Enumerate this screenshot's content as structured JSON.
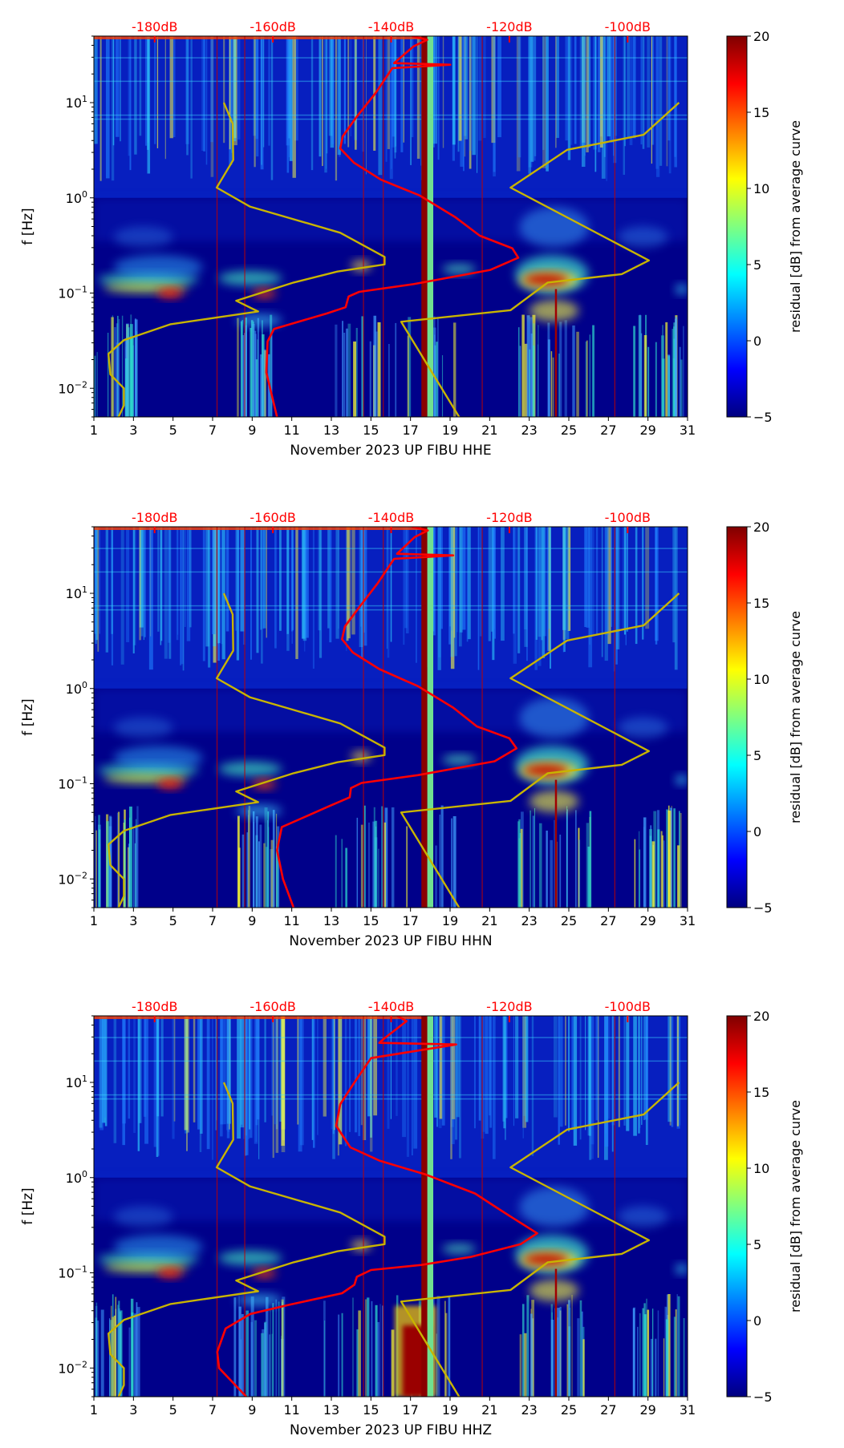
{
  "colors": {
    "psd_curve": "#ff0000",
    "noise_model": "#c8b400",
    "db_labels": "#ff0000"
  },
  "chart_data": [
    {
      "type": "heatmap",
      "xlabel": "November 2023 UP FIBU  HHE",
      "ylabel": "f [Hz]",
      "x_ticks": [
        "1",
        "3",
        "5",
        "7",
        "9",
        "11",
        "13",
        "15",
        "17",
        "19",
        "21",
        "23",
        "25",
        "27",
        "29",
        "31"
      ],
      "xlim": [
        1,
        31
      ],
      "ylim": [
        0.005,
        50
      ],
      "yscale": "log",
      "y_ticks": [
        {
          "base": "10",
          "exp": "1",
          "value": 10
        },
        {
          "base": "10",
          "exp": "0",
          "value": 1
        },
        {
          "base": "10",
          "exp": "−1",
          "value": 0.1
        },
        {
          "base": "10",
          "exp": "−2",
          "value": 0.01
        }
      ],
      "top_axis_ticks": [
        {
          "label": "-180dB",
          "db": -180
        },
        {
          "label": "-160dB",
          "db": -160
        },
        {
          "label": "-140dB",
          "db": -140
        },
        {
          "label": "-120dB",
          "db": -120
        },
        {
          "label": "-100dB",
          "db": -100
        }
      ],
      "colorbar": {
        "label": "residual [dB] from average curve",
        "ticks": [
          "20",
          "15",
          "10",
          "5",
          "0",
          "−5"
        ],
        "range": [
          -5,
          20
        ],
        "colormap": "jet"
      },
      "series": [
        {
          "name": "average PSD",
          "color": "#ff0000",
          "points_db_hz": [
            [
              -159.3,
              0.005
            ],
            [
              -161.1,
              0.0146
            ],
            [
              -160.9,
              0.031
            ],
            [
              -159.8,
              0.042
            ],
            [
              -150.9,
              0.061
            ],
            [
              -147.7,
              0.071
            ],
            [
              -147.2,
              0.092
            ],
            [
              -145.4,
              0.103
            ],
            [
              -136.2,
              0.124
            ],
            [
              -123.2,
              0.175
            ],
            [
              -118.5,
              0.235
            ],
            [
              -119.5,
              0.295
            ],
            [
              -125.0,
              0.4
            ],
            [
              -129.2,
              0.63
            ],
            [
              -135.2,
              1.06
            ],
            [
              -141.7,
              1.55
            ],
            [
              -146.3,
              2.34
            ],
            [
              -148.6,
              3.3
            ],
            [
              -148.2,
              4.4
            ],
            [
              -145.9,
              7
            ],
            [
              -142.6,
              12.7
            ],
            [
              -139.8,
              23
            ],
            [
              -130.0,
              25
            ],
            [
              -139.5,
              26
            ],
            [
              -136.2,
              39
            ],
            [
              -133.9,
              45.7
            ],
            [
              -136.5,
              50
            ]
          ]
        },
        {
          "name": "low noise model",
          "color": "#c8b400",
          "points_db_hz": [
            [
              -168.3,
              10
            ],
            [
              -166.8,
              6
            ],
            [
              -166.7,
              2.5
            ],
            [
              -169.5,
              1.28
            ],
            [
              -163.9,
              0.81
            ],
            [
              -148.6,
              0.43
            ],
            [
              -141.1,
              0.24
            ],
            [
              -141.1,
              0.2
            ],
            [
              -149.1,
              0.168
            ],
            [
              -156.5,
              0.129
            ],
            [
              -166.2,
              0.083
            ],
            [
              -162.5,
              0.064
            ],
            [
              -177.3,
              0.047
            ],
            [
              -185.2,
              0.032
            ],
            [
              -187.8,
              0.023
            ],
            [
              -187.5,
              0.014
            ],
            [
              -185.2,
              0.01
            ],
            [
              -185.2,
              0.0066
            ],
            [
              -186.1,
              0.005
            ]
          ]
        },
        {
          "name": "high noise model",
          "color": "#c8b400",
          "points_db_hz": [
            [
              -91.3,
              10
            ],
            [
              -97.3,
              4.6
            ],
            [
              -110.2,
              3.2
            ],
            [
              -119.8,
              1.28
            ],
            [
              -96.4,
              0.22
            ],
            [
              -101.0,
              0.158
            ],
            [
              -113.5,
              0.129
            ],
            [
              -119.8,
              0.066
            ],
            [
              -138.3,
              0.05
            ],
            [
              -128.5,
              0.005
            ]
          ]
        }
      ]
    },
    {
      "type": "heatmap",
      "xlabel": "November 2023 UP FIBU  HHN",
      "ylabel": "f [Hz]",
      "x_ticks": [
        "1",
        "3",
        "5",
        "7",
        "9",
        "11",
        "13",
        "15",
        "17",
        "19",
        "21",
        "23",
        "25",
        "27",
        "29",
        "31"
      ],
      "xlim": [
        1,
        31
      ],
      "ylim": [
        0.005,
        50
      ],
      "yscale": "log",
      "y_ticks": [
        {
          "base": "10",
          "exp": "1",
          "value": 10
        },
        {
          "base": "10",
          "exp": "0",
          "value": 1
        },
        {
          "base": "10",
          "exp": "−1",
          "value": 0.1
        },
        {
          "base": "10",
          "exp": "−2",
          "value": 0.01
        }
      ],
      "top_axis_ticks": [
        {
          "label": "-180dB",
          "db": -180
        },
        {
          "label": "-160dB",
          "db": -160
        },
        {
          "label": "-140dB",
          "db": -140
        },
        {
          "label": "-120dB",
          "db": -120
        },
        {
          "label": "-100dB",
          "db": -100
        }
      ],
      "colorbar": {
        "label": "residual [dB] from average curve",
        "ticks": [
          "20",
          "15",
          "10",
          "5",
          "0",
          "−5"
        ],
        "range": [
          -5,
          20
        ],
        "colormap": "jet"
      },
      "series": [
        {
          "name": "average PSD",
          "color": "#ff0000",
          "points_db_hz": [
            [
              -156.5,
              0.005
            ],
            [
              -158.3,
              0.01
            ],
            [
              -159.3,
              0.02
            ],
            [
              -158.5,
              0.035
            ],
            [
              -150.5,
              0.058
            ],
            [
              -147.0,
              0.072
            ],
            [
              -146.8,
              0.09
            ],
            [
              -145.0,
              0.102
            ],
            [
              -135.5,
              0.123
            ],
            [
              -122.5,
              0.172
            ],
            [
              -118.8,
              0.235
            ],
            [
              -120.0,
              0.3
            ],
            [
              -125.5,
              0.4
            ],
            [
              -129.5,
              0.63
            ],
            [
              -135.5,
              1.06
            ],
            [
              -142.0,
              1.6
            ],
            [
              -146.5,
              2.4
            ],
            [
              -148.3,
              3.3
            ],
            [
              -147.8,
              4.5
            ],
            [
              -145.5,
              7
            ],
            [
              -142.3,
              12.7
            ],
            [
              -139.5,
              23
            ],
            [
              -129.5,
              25
            ],
            [
              -139.0,
              26
            ],
            [
              -136.0,
              39
            ],
            [
              -133.8,
              45.7
            ],
            [
              -136.5,
              50
            ]
          ]
        },
        {
          "name": "low noise model",
          "color": "#c8b400",
          "points_db_hz": [
            [
              -168.3,
              10
            ],
            [
              -166.8,
              6
            ],
            [
              -166.7,
              2.5
            ],
            [
              -169.5,
              1.28
            ],
            [
              -163.9,
              0.81
            ],
            [
              -148.6,
              0.43
            ],
            [
              -141.1,
              0.24
            ],
            [
              -141.1,
              0.2
            ],
            [
              -149.1,
              0.168
            ],
            [
              -156.5,
              0.129
            ],
            [
              -166.2,
              0.083
            ],
            [
              -162.5,
              0.064
            ],
            [
              -177.3,
              0.047
            ],
            [
              -185.2,
              0.032
            ],
            [
              -187.8,
              0.023
            ],
            [
              -187.5,
              0.014
            ],
            [
              -185.2,
              0.01
            ],
            [
              -185.2,
              0.0066
            ],
            [
              -186.1,
              0.005
            ]
          ]
        },
        {
          "name": "high noise model",
          "color": "#c8b400",
          "points_db_hz": [
            [
              -91.3,
              10
            ],
            [
              -97.3,
              4.6
            ],
            [
              -110.2,
              3.2
            ],
            [
              -119.8,
              1.28
            ],
            [
              -96.4,
              0.22
            ],
            [
              -101.0,
              0.158
            ],
            [
              -113.5,
              0.129
            ],
            [
              -119.8,
              0.066
            ],
            [
              -138.3,
              0.05
            ],
            [
              -128.5,
              0.005
            ]
          ]
        }
      ]
    },
    {
      "type": "heatmap",
      "xlabel": "November 2023 UP FIBU  HHZ",
      "ylabel": "f [Hz]",
      "x_ticks": [
        "1",
        "3",
        "5",
        "7",
        "9",
        "11",
        "13",
        "15",
        "17",
        "19",
        "21",
        "23",
        "25",
        "27",
        "29",
        "31"
      ],
      "xlim": [
        1,
        31
      ],
      "ylim": [
        0.005,
        50
      ],
      "yscale": "log",
      "y_ticks": [
        {
          "base": "10",
          "exp": "1",
          "value": 10
        },
        {
          "base": "10",
          "exp": "0",
          "value": 1
        },
        {
          "base": "10",
          "exp": "−1",
          "value": 0.1
        },
        {
          "base": "10",
          "exp": "−2",
          "value": 0.01
        }
      ],
      "top_axis_ticks": [
        {
          "label": "-180dB",
          "db": -180
        },
        {
          "label": "-160dB",
          "db": -160
        },
        {
          "label": "-140dB",
          "db": -140
        },
        {
          "label": "-120dB",
          "db": -120
        },
        {
          "label": "-100dB",
          "db": -100
        }
      ],
      "colorbar": {
        "label": "residual [dB] from average curve",
        "ticks": [
          "20",
          "15",
          "10",
          "5",
          "0",
          "−5"
        ],
        "range": [
          -5,
          20
        ],
        "colormap": "jet"
      },
      "series": [
        {
          "name": "average PSD",
          "color": "#ff0000",
          "points_db_hz": [
            [
              -164.5,
              0.005
            ],
            [
              -169.1,
              0.01
            ],
            [
              -169.4,
              0.0148
            ],
            [
              -168.0,
              0.026
            ],
            [
              -163.8,
              0.037
            ],
            [
              -157.4,
              0.046
            ],
            [
              -148.3,
              0.061
            ],
            [
              -146.2,
              0.075
            ],
            [
              -145.8,
              0.091
            ],
            [
              -143.4,
              0.107
            ],
            [
              -134.9,
              0.121
            ],
            [
              -126.5,
              0.147
            ],
            [
              -118.1,
              0.2
            ],
            [
              -115.3,
              0.26
            ],
            [
              -119.5,
              0.38
            ],
            [
              -122.3,
              0.49
            ],
            [
              -125.8,
              0.68
            ],
            [
              -134.2,
              1.08
            ],
            [
              -141.9,
              1.5
            ],
            [
              -146.9,
              2.08
            ],
            [
              -149.3,
              3.5
            ],
            [
              -148.6,
              5.9
            ],
            [
              -146.2,
              10
            ],
            [
              -143.4,
              18
            ],
            [
              -129.0,
              25
            ],
            [
              -142.0,
              26
            ],
            [
              -141.3,
              28.5
            ],
            [
              -137.4,
              44
            ],
            [
              -139.0,
              50
            ]
          ]
        },
        {
          "name": "low noise model",
          "color": "#c8b400",
          "points_db_hz": [
            [
              -168.3,
              10
            ],
            [
              -166.8,
              6
            ],
            [
              -166.7,
              2.5
            ],
            [
              -169.5,
              1.28
            ],
            [
              -163.9,
              0.81
            ],
            [
              -148.6,
              0.43
            ],
            [
              -141.1,
              0.24
            ],
            [
              -141.1,
              0.2
            ],
            [
              -149.1,
              0.168
            ],
            [
              -156.5,
              0.129
            ],
            [
              -166.2,
              0.083
            ],
            [
              -162.5,
              0.064
            ],
            [
              -177.3,
              0.047
            ],
            [
              -185.2,
              0.032
            ],
            [
              -187.8,
              0.023
            ],
            [
              -187.5,
              0.014
            ],
            [
              -185.2,
              0.01
            ],
            [
              -185.2,
              0.0066
            ],
            [
              -186.1,
              0.005
            ]
          ]
        },
        {
          "name": "high noise model",
          "color": "#c8b400",
          "points_db_hz": [
            [
              -91.3,
              10
            ],
            [
              -97.3,
              4.6
            ],
            [
              -110.2,
              3.2
            ],
            [
              -119.8,
              1.28
            ],
            [
              -96.4,
              0.22
            ],
            [
              -101.0,
              0.158
            ],
            [
              -113.5,
              0.129
            ],
            [
              -119.8,
              0.066
            ],
            [
              -138.3,
              0.05
            ],
            [
              -128.5,
              0.005
            ]
          ]
        }
      ]
    }
  ]
}
